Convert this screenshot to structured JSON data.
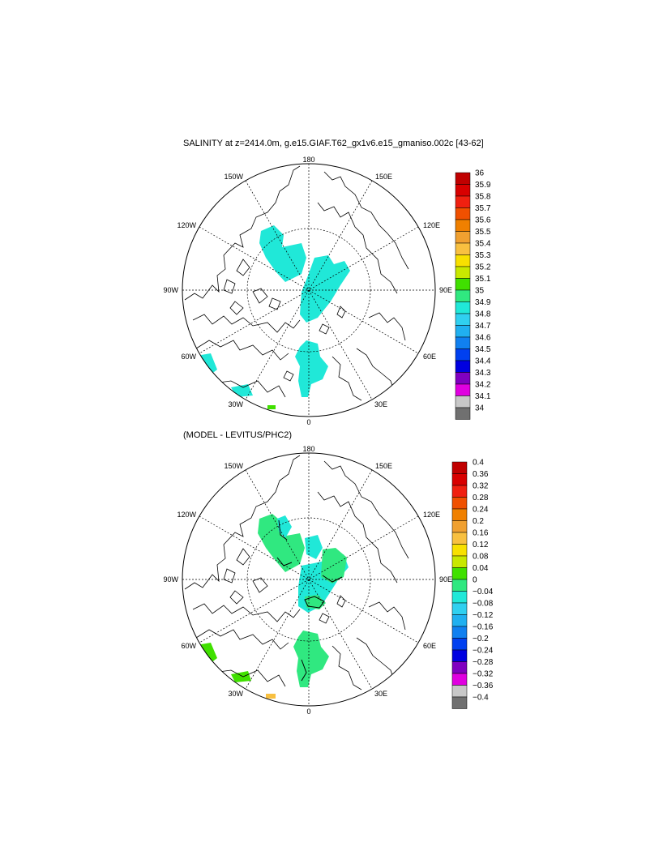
{
  "top_panel": {
    "title": "SALINITY at z=2414.0m, g.e15.GIAF.T62_gx1v6.e15_gmaniso.002c [43-62]",
    "longitude_labels": {
      "lon_180": "180",
      "lon_150E": "150E",
      "lon_120E": "120E",
      "lon_90E": "90E",
      "lon_60E": "60E",
      "lon_30E": "30E",
      "lon_0": "0",
      "lon_30W": "30W",
      "lon_60W": "60W",
      "lon_90W": "90W",
      "lon_120W": "120W",
      "lon_150W": "150W"
    },
    "colorbar": {
      "labels": [
        "36",
        "35.9",
        "35.8",
        "35.7",
        "35.6",
        "35.5",
        "35.4",
        "35.3",
        "35.2",
        "35.1",
        "35",
        "34.9",
        "34.8",
        "34.7",
        "34.6",
        "34.5",
        "34.4",
        "34.3",
        "34.2",
        "34.1",
        "34"
      ],
      "colors": [
        "#c00000",
        "#d80000",
        "#f02010",
        "#f05000",
        "#f08000",
        "#f0a030",
        "#f8c040",
        "#f8e000",
        "#c8e800",
        "#40e000",
        "#30e880",
        "#20e8d8",
        "#30d0f0",
        "#20b0f0",
        "#1080f0",
        "#0040f0",
        "#0000e0",
        "#8000c0",
        "#e000e0",
        "#c8c8c8",
        "#707070"
      ]
    }
  },
  "bottom_panel": {
    "title": "(MODEL - LEVITUS/PHC2)",
    "longitude_labels": {
      "lon_180": "180",
      "lon_150E": "150E",
      "lon_120E": "120E",
      "lon_90E": "90E",
      "lon_60E": "60E",
      "lon_30E": "30E",
      "lon_0": "0",
      "lon_30W": "30W",
      "lon_60W": "60W",
      "lon_90W": "90W",
      "lon_120W": "120W",
      "lon_150W": "150W"
    },
    "colorbar": {
      "labels": [
        "0.4",
        "0.36",
        "0.32",
        "0.28",
        "0.24",
        "0.2",
        "0.16",
        "0.12",
        "0.08",
        "0.04",
        "0",
        "−0.04",
        "−0.08",
        "−0.12",
        "−0.16",
        "−0.2",
        "−0.24",
        "−0.28",
        "−0.32",
        "−0.36",
        "−0.4"
      ],
      "colors": [
        "#c00000",
        "#d80000",
        "#f02010",
        "#f05000",
        "#f08000",
        "#f0a030",
        "#f8c040",
        "#f8e000",
        "#c8e800",
        "#40e000",
        "#30e880",
        "#20e8d8",
        "#30d0f0",
        "#20b0f0",
        "#1080f0",
        "#0040f0",
        "#0000e0",
        "#8000c0",
        "#e000e0",
        "#c8c8c8",
        "#707070"
      ]
    }
  }
}
